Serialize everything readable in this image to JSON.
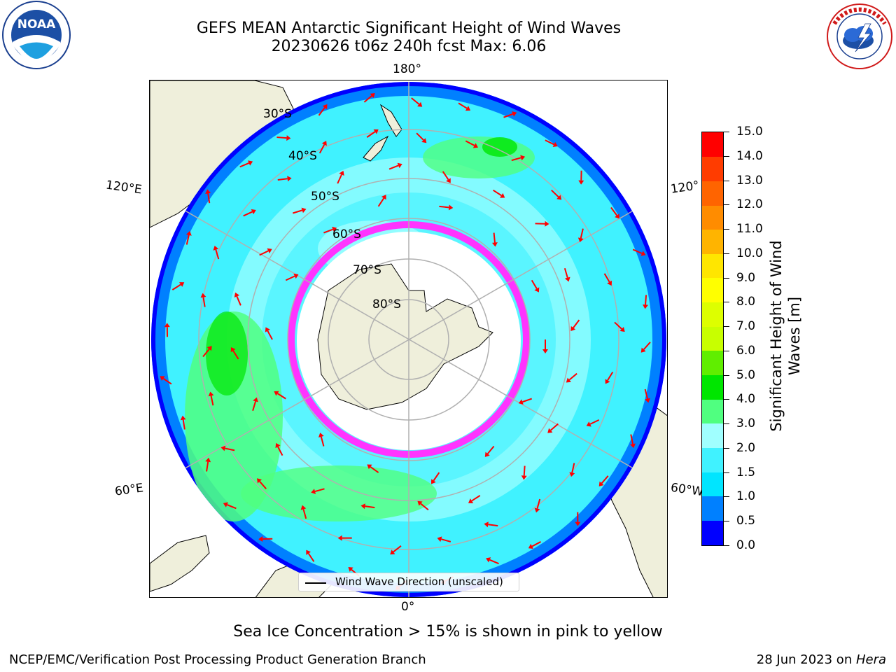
{
  "title": {
    "line1": "GEFS MEAN Antarctic Significant Height of Wind Waves",
    "line2": "20230626 t06z 240h fcst   Max: 6.06"
  },
  "logos": {
    "left": "NOAA",
    "left_ring": "NATIONAL OCEANIC AND ATMOSPHERIC ADMINISTRATION · U.S. DEPARTMENT OF COMMERCE",
    "right_ring": "NATIONAL WEATHER SERVICE"
  },
  "map": {
    "lon_labels": {
      "top": "180°",
      "bottom": "0°",
      "left_upper": "120°E",
      "left_lower": "60°E",
      "right_upper": "120°",
      "right_lower": "60°W"
    },
    "lat_labels": [
      "30°S",
      "40°S",
      "50°S",
      "60°S",
      "70°S",
      "80°S"
    ],
    "legend": "Wind Wave Direction (unscaled)",
    "colors": {
      "land": "#efefdb",
      "ice_edge": "#ff33ff",
      "arrow": "#ff0000"
    }
  },
  "colorbar": {
    "title": "Significant Height of Wind Waves [m]",
    "ticks": [
      "0.0",
      "0.5",
      "1.0",
      "1.5",
      "2.0",
      "3.0",
      "4.0",
      "5.0",
      "6.0",
      "7.0",
      "8.0",
      "9.0",
      "10.0",
      "11.0",
      "12.0",
      "13.0",
      "14.0",
      "15.0"
    ],
    "colors": [
      "#0000ff",
      "#0080ff",
      "#00e5ff",
      "#40f2ff",
      "#a0ffff",
      "#50ff80",
      "#00e600",
      "#60ee00",
      "#c8ff00",
      "#ddff00",
      "#ffff00",
      "#ffe600",
      "#ffb400",
      "#ff8c00",
      "#ff6400",
      "#ff3c00",
      "#ff0000"
    ]
  },
  "footer": {
    "subtitle": "Sea Ice Concentration > 15% is shown in pink to yellow",
    "credit": "NCEP/EMC/Verification Post Processing Product Generation Branch",
    "date_prefix": "28 Jun 2023 on ",
    "date_host": "Hera"
  }
}
